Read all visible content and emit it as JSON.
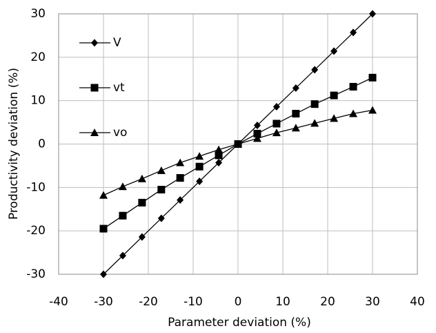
{
  "chart_data": {
    "type": "line",
    "x_label": "Parameter deviation (%)",
    "y_label": "Productivity deviation (%)",
    "x": [
      -30,
      -25.7,
      -21.4,
      -17.1,
      -12.9,
      -8.6,
      -4.3,
      0,
      4.3,
      8.6,
      12.9,
      17.1,
      21.4,
      25.7,
      30
    ],
    "series": [
      {
        "name": "V",
        "color": "#000000",
        "marker": "diamond",
        "values": [
          -30,
          -25.7,
          -21.4,
          -17.1,
          -12.9,
          -8.6,
          -4.3,
          0,
          4.3,
          8.6,
          12.9,
          17.1,
          21.4,
          25.7,
          30
        ]
      },
      {
        "name": "vt",
        "color": "#000000",
        "marker": "square",
        "values": [
          -19.5,
          -16.5,
          -13.5,
          -10.5,
          -7.8,
          -5.2,
          -2.6,
          0,
          2.4,
          4.7,
          7.0,
          9.2,
          11.2,
          13.2,
          15.3
        ]
      },
      {
        "name": "vo",
        "color": "#000000",
        "marker": "triangle",
        "values": [
          -11.8,
          -9.8,
          -8.0,
          -6.1,
          -4.3,
          -2.8,
          -1.3,
          0,
          1.3,
          2.6,
          3.7,
          4.8,
          5.9,
          7.0,
          7.8
        ]
      }
    ],
    "xlim": [
      -40,
      40
    ],
    "xticks": [
      -40,
      -30,
      -20,
      -10,
      0,
      10,
      20,
      30,
      40
    ],
    "ylim": [
      -30,
      30
    ],
    "yticks": [
      -30,
      -20,
      -10,
      0,
      10,
      20,
      30
    ],
    "grid": true,
    "legend": "upper-left"
  }
}
